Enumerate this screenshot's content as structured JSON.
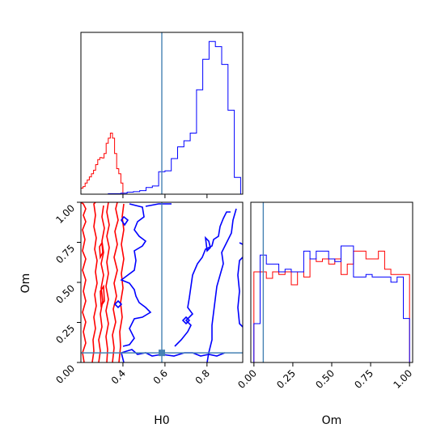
{
  "figure": {
    "type": "corner-plot",
    "parameters": [
      "H0",
      "Om"
    ]
  },
  "chart_data": [
    {
      "panel": "H0-marginal",
      "type": "histogram-step",
      "x_range": [
        0.2,
        0.97
      ],
      "truth": 0.585,
      "yticks_shown": false,
      "series": [
        {
          "color": "#ff0000",
          "bin_edges": [
            0.2,
            0.21,
            0.22,
            0.23,
            0.24,
            0.25,
            0.26,
            0.27,
            0.28,
            0.29,
            0.3,
            0.31,
            0.32,
            0.33,
            0.34,
            0.35,
            0.36,
            0.37,
            0.38,
            0.39,
            0.4,
            0.41
          ],
          "density": [
            0.12,
            0.15,
            0.22,
            0.28,
            0.34,
            0.4,
            0.47,
            0.58,
            0.68,
            0.72,
            0.71,
            0.8,
            1.0,
            1.1,
            1.2,
            1.1,
            0.8,
            0.5,
            0.4,
            0.22,
            0.0
          ]
        },
        {
          "color": "#0000ff",
          "bin_edges": [
            0.3,
            0.33,
            0.36,
            0.39,
            0.42,
            0.45,
            0.48,
            0.51,
            0.54,
            0.57,
            0.6,
            0.63,
            0.66,
            0.69,
            0.72,
            0.75,
            0.78,
            0.81,
            0.84,
            0.87,
            0.9,
            0.93,
            0.96
          ],
          "density": [
            0.0,
            0.01,
            0.01,
            0.02,
            0.04,
            0.05,
            0.07,
            0.13,
            0.16,
            0.44,
            0.46,
            0.7,
            0.93,
            1.05,
            1.2,
            2.05,
            2.65,
            3.0,
            2.9,
            2.55,
            1.65,
            0.33
          ]
        }
      ]
    },
    {
      "panel": "H0-Om-joint",
      "type": "contour",
      "xlabel": "H0",
      "ylabel": "Om",
      "xlim": [
        0.2,
        0.97
      ],
      "ylim": [
        0.0,
        1.0
      ],
      "xticks": [
        "0.4",
        "0.6",
        "0.8"
      ],
      "yticks": [
        "0.00",
        "0.25",
        "0.50",
        "0.75",
        "1.00"
      ],
      "truth": {
        "H0": 0.585,
        "Om": 0.06
      },
      "series": [
        {
          "color": "#ff0000",
          "region_H0": [
            0.2,
            0.42
          ],
          "region_Om": [
            0.0,
            1.0
          ]
        },
        {
          "color": "#0000ff",
          "region_H0": [
            0.37,
            0.97
          ],
          "region_Om": [
            0.0,
            1.0
          ]
        }
      ]
    },
    {
      "panel": "Om-marginal",
      "type": "histogram-step",
      "xlabel": "Om",
      "xlim": [
        -0.02,
        1.02
      ],
      "xticks": [
        "0.00",
        "0.25",
        "0.50",
        "0.75",
        "1.00"
      ],
      "truth": 0.06,
      "series": [
        {
          "color": "#ff0000",
          "bin_edges": [
            0.0,
            0.04,
            0.08,
            0.12,
            0.16,
            0.2,
            0.24,
            0.28,
            0.32,
            0.36,
            0.4,
            0.44,
            0.48,
            0.52,
            0.56,
            0.6,
            0.64,
            0.68,
            0.72,
            0.76,
            0.8,
            0.84,
            0.88,
            0.92,
            0.96,
            1.0
          ],
          "density": [
            0.7,
            0.7,
            0.65,
            0.7,
            0.68,
            0.7,
            0.6,
            0.7,
            0.66,
            0.8,
            0.78,
            0.8,
            0.76,
            0.8,
            0.68,
            0.76,
            0.86,
            0.86,
            0.8,
            0.8,
            0.86,
            0.72,
            0.68,
            0.68,
            0.68
          ]
        },
        {
          "color": "#0000ff",
          "bin_edges": [
            0.0,
            0.04,
            0.08,
            0.12,
            0.16,
            0.2,
            0.24,
            0.28,
            0.32,
            0.36,
            0.4,
            0.44,
            0.48,
            0.52,
            0.56,
            0.6,
            0.64,
            0.68,
            0.72,
            0.76,
            0.8,
            0.84,
            0.88,
            0.92,
            0.96,
            1.0
          ],
          "density": [
            0.3,
            0.83,
            0.76,
            0.76,
            0.7,
            0.72,
            0.7,
            0.7,
            0.86,
            0.8,
            0.86,
            0.86,
            0.8,
            0.78,
            0.9,
            0.9,
            0.66,
            0.66,
            0.68,
            0.66,
            0.66,
            0.66,
            0.62,
            0.66,
            0.34
          ]
        }
      ]
    }
  ]
}
